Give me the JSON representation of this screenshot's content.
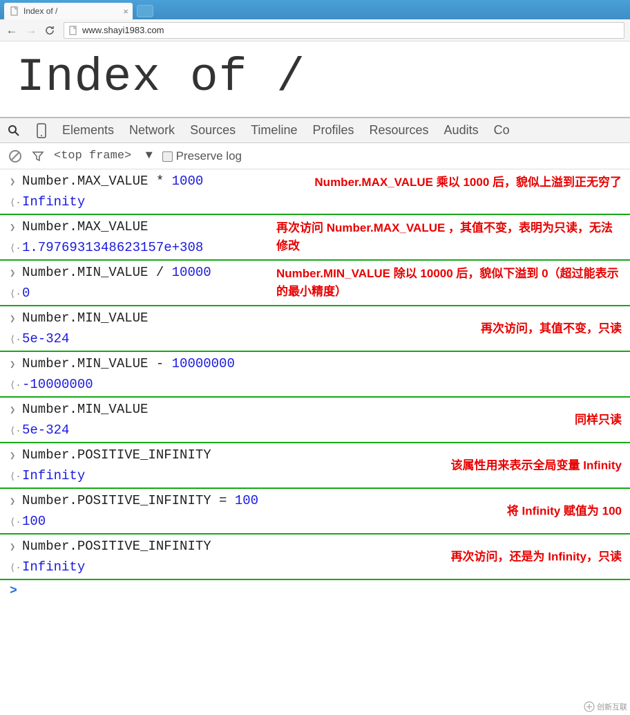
{
  "browser": {
    "tab_title": "Index of /",
    "url": "www.shayi1983.com"
  },
  "page": {
    "heading": "Index of /"
  },
  "devtools": {
    "tabs": [
      "Elements",
      "Network",
      "Sources",
      "Timeline",
      "Profiles",
      "Resources",
      "Audits",
      "Co"
    ],
    "frame_selector": "<top frame>",
    "preserve_log_label": "Preserve log"
  },
  "console_entries": [
    {
      "input_plain": "Number.MAX_VALUE * ",
      "input_num": "1000",
      "output": "Infinity",
      "annotation": "Number.MAX_VALUE 乘以 1000 后，貌似上溢到正无穷了"
    },
    {
      "input_plain": "Number.MAX_VALUE",
      "input_num": "",
      "output": "1.7976931348623157e+308",
      "annotation": "再次访问 Number.MAX_VALUE ，其值不变，表明为只读，无法修改"
    },
    {
      "input_plain": "Number.MIN_VALUE / ",
      "input_num": "10000",
      "output": "0",
      "annotation": "Number.MIN_VALUE 除以 10000 后，貌似下溢到 0（超过能表示的最小精度）"
    },
    {
      "input_plain": "Number.MIN_VALUE",
      "input_num": "",
      "output": "5e-324",
      "annotation": "再次访问，其值不变，只读"
    },
    {
      "input_plain": "Number.MIN_VALUE - ",
      "input_num": "10000000",
      "output": "-10000000",
      "annotation": ""
    },
    {
      "input_plain": "Number.MIN_VALUE",
      "input_num": "",
      "output": "5e-324",
      "annotation": "同样只读"
    },
    {
      "input_plain": "Number.POSITIVE_INFINITY",
      "input_num": "",
      "output": "Infinity",
      "annotation": "该属性用来表示全局变量 Infinity"
    },
    {
      "input_plain": "Number.POSITIVE_INFINITY = ",
      "input_num": "100",
      "output": "100",
      "annotation": "将 Infinity 赋值为 100"
    },
    {
      "input_plain": "Number.POSITIVE_INFINITY",
      "input_num": "",
      "output": "Infinity",
      "annotation": "再次访问，还是为 Infinity，只读"
    }
  ],
  "colors": {
    "separator": "#16a816",
    "number": "#1a1ae0",
    "annotation": "#e80000",
    "tabbar_bg": "#3d8ec5"
  },
  "watermark": "创新互联"
}
